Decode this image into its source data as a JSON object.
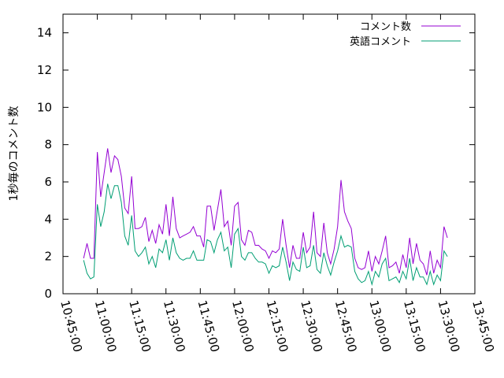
{
  "chart_data": {
    "type": "line",
    "title": "",
    "xlabel": "",
    "ylabel": "1秒毎のコメント数",
    "xlim": [
      "10:45:00",
      "13:45:00"
    ],
    "ylim": [
      0,
      15
    ],
    "x_ticks": [
      "10:45:00",
      "11:00:00",
      "11:15:00",
      "11:30:00",
      "11:45:00",
      "12:00:00",
      "12:15:00",
      "12:30:00",
      "12:45:00",
      "13:00:00",
      "13:15:00",
      "13:30:00",
      "13:45:00"
    ],
    "y_ticks": [
      0,
      2,
      4,
      6,
      8,
      10,
      12,
      14
    ],
    "grid": false,
    "legend": "top-right",
    "x": [
      "10:54:00",
      "10:55:30",
      "10:57:00",
      "10:58:30",
      "11:00:00",
      "11:01:30",
      "11:03:00",
      "11:04:30",
      "11:06:00",
      "11:07:30",
      "11:09:00",
      "11:10:30",
      "11:12:00",
      "11:13:30",
      "11:15:00",
      "11:16:30",
      "11:18:00",
      "11:19:30",
      "11:21:00",
      "11:22:30",
      "11:24:00",
      "11:25:30",
      "11:27:00",
      "11:28:30",
      "11:30:00",
      "11:31:30",
      "11:33:00",
      "11:34:30",
      "11:36:00",
      "11:37:30",
      "11:39:00",
      "11:40:30",
      "11:42:00",
      "11:43:30",
      "11:45:00",
      "11:46:30",
      "11:48:00",
      "11:49:30",
      "11:51:00",
      "11:52:30",
      "11:54:00",
      "11:55:30",
      "11:57:00",
      "11:58:30",
      "12:00:00",
      "12:01:30",
      "12:03:00",
      "12:04:30",
      "12:06:00",
      "12:07:30",
      "12:09:00",
      "12:10:30",
      "12:12:00",
      "12:13:30",
      "12:15:00",
      "12:16:30",
      "12:18:00",
      "12:19:30",
      "12:21:00",
      "12:22:30",
      "12:24:00",
      "12:25:30",
      "12:27:00",
      "12:28:30",
      "12:30:00",
      "12:31:30",
      "12:33:00",
      "12:34:30",
      "12:36:00",
      "12:37:30",
      "12:39:00",
      "12:40:30",
      "12:42:00",
      "12:43:30",
      "12:45:00",
      "12:46:30",
      "12:48:00",
      "12:49:30",
      "12:51:00",
      "12:52:30",
      "12:54:00",
      "12:55:30",
      "12:57:00",
      "12:58:30",
      "13:00:00",
      "13:01:30",
      "13:03:00",
      "13:04:30",
      "13:06:00",
      "13:07:30",
      "13:09:00",
      "13:10:30",
      "13:12:00",
      "13:13:30",
      "13:15:00",
      "13:16:30",
      "13:18:00",
      "13:19:30",
      "13:21:00",
      "13:22:30",
      "13:24:00",
      "13:25:30",
      "13:27:00",
      "13:28:30",
      "13:30:00",
      "13:31:30",
      "13:33:00"
    ],
    "series": [
      {
        "name": "コメント数",
        "color": "#9400d3",
        "values": [
          1.9,
          2.7,
          1.9,
          1.9,
          7.6,
          5.2,
          6.5,
          7.8,
          6.5,
          7.4,
          7.2,
          6.3,
          4.6,
          4.3,
          6.3,
          3.5,
          3.5,
          3.6,
          4.1,
          2.8,
          3.4,
          2.7,
          3.7,
          3.2,
          4.8,
          3.1,
          5.2,
          3.5,
          3.0,
          3.1,
          3.2,
          3.3,
          3.6,
          3.1,
          3.1,
          2.5,
          4.7,
          4.7,
          3.4,
          4.5,
          5.6,
          3.6,
          3.9,
          2.6,
          4.7,
          4.9,
          2.9,
          2.6,
          3.4,
          3.3,
          2.6,
          2.6,
          2.4,
          2.3,
          1.9,
          2.3,
          2.2,
          2.4,
          4.0,
          2.6,
          1.4,
          2.6,
          1.9,
          1.9,
          3.3,
          2.2,
          2.5,
          4.4,
          2.2,
          2.0,
          3.8,
          2.2,
          1.6,
          2.4,
          3.6,
          6.1,
          4.4,
          3.9,
          3.5,
          1.9,
          1.4,
          1.3,
          1.4,
          2.3,
          1.2,
          2.0,
          1.6,
          2.3,
          3.1,
          1.4,
          1.5,
          1.7,
          1.1,
          2.1,
          1.4,
          3.0,
          1.6,
          2.7,
          1.8,
          1.6,
          1.0,
          2.3,
          1.1,
          1.8,
          1.4,
          3.6,
          3.0
        ]
      },
      {
        "name": "英語コメント",
        "color": "#009e73",
        "values": [
          1.8,
          1.1,
          0.8,
          0.9,
          4.8,
          3.6,
          4.4,
          5.9,
          5.1,
          5.8,
          5.8,
          4.9,
          3.1,
          2.6,
          4.2,
          2.3,
          2.0,
          2.2,
          2.5,
          1.6,
          2.0,
          1.4,
          2.4,
          2.2,
          2.9,
          1.8,
          3.0,
          2.2,
          1.9,
          1.8,
          1.9,
          1.9,
          2.3,
          1.8,
          1.8,
          1.8,
          2.9,
          2.8,
          2.2,
          2.9,
          3.3,
          2.3,
          2.5,
          1.4,
          3.2,
          3.5,
          2.0,
          1.8,
          2.2,
          2.2,
          1.9,
          1.7,
          1.7,
          1.6,
          1.1,
          1.5,
          1.4,
          1.5,
          2.5,
          1.7,
          0.7,
          1.7,
          1.3,
          1.2,
          2.5,
          1.4,
          1.5,
          2.6,
          1.3,
          1.1,
          2.2,
          1.5,
          1.0,
          1.7,
          2.3,
          3.1,
          2.5,
          2.6,
          2.5,
          1.2,
          0.8,
          0.6,
          0.7,
          1.2,
          0.5,
          1.2,
          0.9,
          1.6,
          1.9,
          0.7,
          0.8,
          0.9,
          0.6,
          1.2,
          0.8,
          1.9,
          0.7,
          1.4,
          0.9,
          0.9,
          0.5,
          1.2,
          0.5,
          1.0,
          0.7,
          2.3,
          2.0
        ]
      }
    ]
  }
}
